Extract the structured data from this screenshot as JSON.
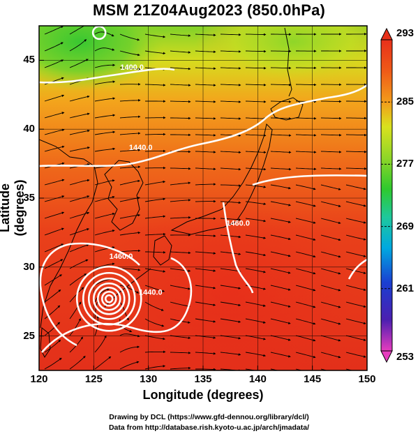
{
  "header": {
    "title": "MSM 21Z04Aug2023 (850.0hPa)"
  },
  "axes": {
    "xlabel": "Longitude (degrees)",
    "ylabel": "Latitude  (degrees)",
    "x_ticks": [
      "120",
      "125",
      "130",
      "135",
      "140",
      "145",
      "150"
    ],
    "y_ticks": [
      "25",
      "30",
      "35",
      "40",
      "45"
    ],
    "x_range": [
      120,
      150
    ],
    "y_range": [
      22.5,
      47.5
    ]
  },
  "colorbar": {
    "labels": [
      "293",
      "285",
      "277",
      "269",
      "261",
      "253"
    ],
    "range": [
      253,
      293
    ],
    "palette": [
      "#e63cbe",
      "#4b1fb0",
      "#1a3fd1",
      "#00a8e0",
      "#1fc89c",
      "#2ec92e",
      "#8fd628",
      "#d9e21e",
      "#f29c1b",
      "#ef5a18",
      "#e8301a"
    ]
  },
  "contours": [
    {
      "label": "1400.0",
      "lon": 128.5,
      "lat": 44.3
    },
    {
      "label": "1440.0",
      "lon": 129.3,
      "lat": 38.5
    },
    {
      "label": "1460.0",
      "lon": 138.2,
      "lat": 33.0
    },
    {
      "label": "1460.0",
      "lon": 127.5,
      "lat": 30.6
    },
    {
      "label": "1440.0",
      "lon": 130.2,
      "lat": 28.0
    }
  ],
  "features": {
    "typhoon_center": {
      "lon": 126.4,
      "lat": 27.7
    },
    "low_center": {
      "lon": 125.5,
      "lat": 47.0
    }
  },
  "credits": {
    "line1": "Drawing by DCL (https://www.gfd-dennou.org/library/dcl/)",
    "line2": "Data from http://database.rish.kyoto-u.ac.jp/arch/jmadata/"
  },
  "colors": {
    "background": "#ffffff",
    "contour": "#ffffff",
    "grid": "#000000"
  }
}
